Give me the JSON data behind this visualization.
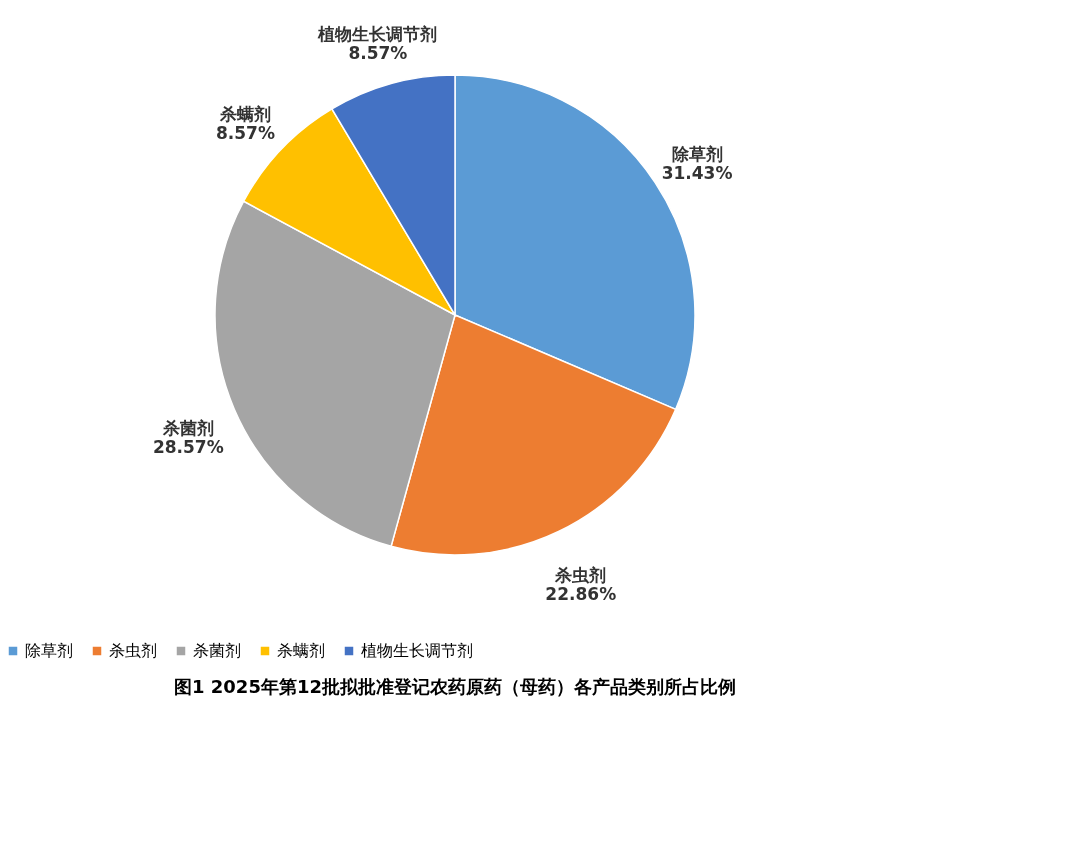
{
  "chart_data": {
    "type": "pie",
    "title": "图1  2025年第12批拟批准登记农药原药（母药）各产品类别所占比例",
    "categories": [
      "除草剂",
      "杀虫剂",
      "杀菌剂",
      "杀螨剂",
      "植物生长调节剂"
    ],
    "values": [
      31.43,
      22.86,
      28.57,
      8.57,
      8.57
    ],
    "colors": [
      "#5b9bd5",
      "#ed7d31",
      "#a5a5a5",
      "#ffc000",
      "#4472c4"
    ],
    "value_labels": [
      "31.43%",
      "22.86%",
      "28.57%",
      "8.57%",
      "8.57%"
    ],
    "legend": "bottom"
  }
}
